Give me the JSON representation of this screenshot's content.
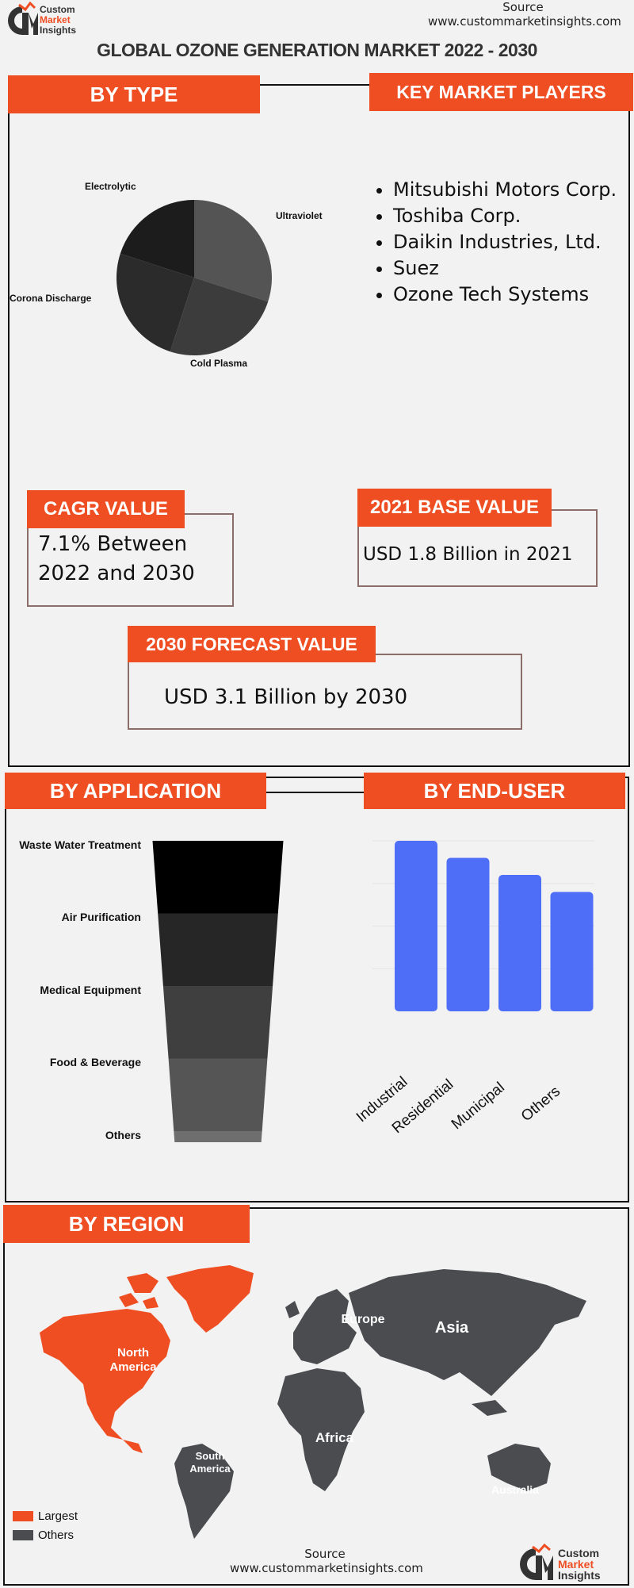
{
  "header": {
    "logo_text": [
      "Custom",
      "Market",
      "Insights"
    ],
    "source_label": "Source",
    "source_url": "www.custommarketinsights.com",
    "title": "GLOBAL OZONE GENERATION MARKET 2022 - 2030"
  },
  "by_type": {
    "heading": "BY TYPE",
    "chart_data": {
      "type": "pie",
      "categories": [
        "Ultraviolet",
        "Cold Plasma",
        "Corona Discharge",
        "Electrolytic"
      ],
      "values": [
        30,
        25,
        25,
        20
      ],
      "colors": [
        "#545454",
        "#3c3c3c",
        "#2b2b2b",
        "#1c1c1c"
      ]
    }
  },
  "key_players": {
    "heading": "KEY MARKET PLAYERS",
    "items": [
      "Mitsubishi Motors Corp.",
      "Toshiba Corp.",
      "Daikin Industries, Ltd.",
      "Suez",
      "Ozone Tech Systems"
    ]
  },
  "cagr": {
    "heading": "CAGR VALUE",
    "line1": "7.1% Between",
    "line2": "2022 and 2030"
  },
  "base_value": {
    "heading": "2021 BASE VALUE",
    "text": "USD 1.8 Billion in 2021"
  },
  "forecast": {
    "heading": "2030 FORECAST  VALUE",
    "text": "USD 3.1 Billion by 2030"
  },
  "by_application": {
    "heading": "BY APPLICATION",
    "chart_data": {
      "type": "funnel",
      "categories": [
        "Waste Water Treatment",
        "Air Purification",
        "Medical Equipment",
        "Food & Beverage",
        "Others"
      ],
      "colors": [
        "#000000",
        "#262626",
        "#3f3f3f",
        "#555555",
        "#6e6e6e"
      ]
    }
  },
  "by_end_user": {
    "heading": "BY END-USER",
    "chart_data": {
      "type": "bar",
      "categories": [
        "Industrial",
        "Residential",
        "Municipal",
        "Others"
      ],
      "values": [
        100,
        90,
        80,
        70
      ],
      "ylim": [
        0,
        100
      ],
      "color": "#4f6ef7",
      "grid": true
    }
  },
  "by_region": {
    "heading": "BY REGION",
    "regions": [
      "North America",
      "South America",
      "Europe",
      "Africa",
      "Asia",
      "Australia"
    ],
    "legend": [
      {
        "label": "Largest",
        "color": "#ef4e23"
      },
      {
        "label": "Others",
        "color": "#4a4c50"
      }
    ]
  },
  "footer": {
    "source_label": "Source",
    "source_url": "www.custommarketinsights.com"
  }
}
